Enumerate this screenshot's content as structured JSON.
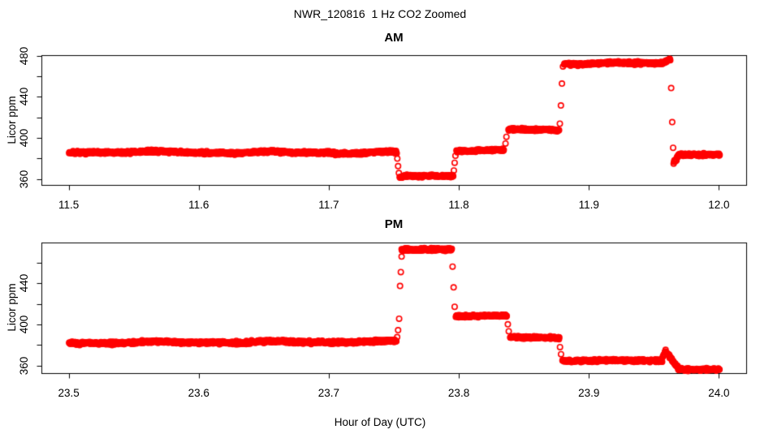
{
  "chart_data": {
    "type": "scatter",
    "title": "NWR_120816  1 Hz CO2 Zoomed",
    "xlabel": "Hour of Day (UTC)",
    "sample_rate_hz": 1,
    "marker": {
      "shape": "open-circle",
      "color": "#ff0000",
      "radius_px": 3.2,
      "stroke_px": 1.6
    },
    "axis_color": "#000000",
    "panels": [
      {
        "title": "AM",
        "ylabel": "Licor ppm",
        "xlim": [
          11.479,
          12.021
        ],
        "ylim": [
          354.2,
          480.9
        ],
        "xticks": [
          11.5,
          11.6,
          11.7,
          11.8,
          11.9,
          12.0
        ],
        "yticks": [
          360,
          400,
          440,
          480
        ],
        "yticks_minor": [
          380,
          420,
          460
        ],
        "segments": [
          {
            "t0": 11.5003,
            "t1": 11.7522,
            "v0": 386.2,
            "v1": 385.6,
            "noise": 0.85,
            "wiggle": 0.7
          },
          {
            "t0": 11.7545,
            "t1": 11.7582,
            "v0": 361.3,
            "v1": 362.6,
            "noise": 0.7,
            "wiggle": 0
          },
          {
            "t0": 11.7582,
            "t1": 11.7958,
            "v0": 363.0,
            "v1": 363.1,
            "noise": 0.65,
            "wiggle": 0.3
          },
          {
            "t0": 11.7982,
            "t1": 11.8346,
            "v0": 387.6,
            "v1": 387.9,
            "noise": 0.7,
            "wiggle": 0.3
          },
          {
            "t0": 11.8382,
            "t1": 11.877,
            "v0": 408.2,
            "v1": 407.8,
            "noise": 0.7,
            "wiggle": 0.3
          },
          {
            "t0": 11.881,
            "t1": 11.9565,
            "v0": 472.5,
            "v1": 472.6,
            "noise": 0.8,
            "wiggle": 0.6
          },
          {
            "t0": 11.9565,
            "t1": 11.9625,
            "v0": 473.0,
            "v1": 476.4,
            "noise": 0.6,
            "wiggle": 0
          },
          {
            "t0": 11.9652,
            "t1": 11.9692,
            "v0": 376.0,
            "v1": 382.8,
            "noise": 0.9,
            "wiggle": 0
          },
          {
            "t0": 11.9692,
            "t1": 12.0005,
            "v0": 384.2,
            "v1": 383.6,
            "noise": 0.8,
            "wiggle": 0.3
          }
        ],
        "transitions": [
          [
            11.7527,
            379.8
          ],
          [
            11.7533,
            372.5
          ],
          [
            11.7539,
            365.8
          ],
          [
            11.7962,
            368.2
          ],
          [
            11.7968,
            375.8
          ],
          [
            11.7974,
            382.6
          ],
          [
            11.8359,
            394.5
          ],
          [
            11.8366,
            401.0
          ],
          [
            11.8777,
            413.8
          ],
          [
            11.8785,
            431.5
          ],
          [
            11.8793,
            452.8
          ],
          [
            11.8801,
            469.5
          ],
          [
            11.9633,
            448.5
          ],
          [
            11.9641,
            415.3
          ],
          [
            11.9648,
            390.3
          ]
        ]
      },
      {
        "title": "PM",
        "ylabel": "Licor ppm",
        "xlim": [
          23.479,
          24.021
        ],
        "ylim": [
          352.8,
          480.0
        ],
        "xticks": [
          23.5,
          23.6,
          23.7,
          23.8,
          23.9,
          24.0
        ],
        "yticks": [
          360,
          400,
          440
        ],
        "yticks_minor": [
          380,
          420,
          460
        ],
        "segments": [
          {
            "t0": 23.5003,
            "t1": 23.752,
            "v0": 382.2,
            "v1": 383.4,
            "noise": 0.85,
            "wiggle": 0.6
          },
          {
            "t0": 23.756,
            "t1": 23.7947,
            "v0": 472.7,
            "v1": 473.1,
            "noise": 0.75,
            "wiggle": 0.3
          },
          {
            "t0": 23.7977,
            "t1": 23.837,
            "v0": 408.6,
            "v1": 408.2,
            "noise": 0.7,
            "wiggle": 0.3
          },
          {
            "t0": 23.8395,
            "t1": 23.8772,
            "v0": 387.6,
            "v1": 387.1,
            "noise": 0.7,
            "wiggle": 0.3
          },
          {
            "t0": 23.8797,
            "t1": 23.9565,
            "v0": 365.2,
            "v1": 364.6,
            "noise": 0.75,
            "wiggle": 0.4
          },
          {
            "t0": 23.9568,
            "t1": 23.959,
            "v0": 368.5,
            "v1": 374.8,
            "noise": 0.6,
            "wiggle": 0
          },
          {
            "t0": 23.9593,
            "t1": 23.9688,
            "v0": 373.5,
            "v1": 357.8,
            "noise": 0.8,
            "wiggle": 0
          },
          {
            "t0": 23.9688,
            "t1": 24.0005,
            "v0": 356.8,
            "v1": 356.3,
            "noise": 0.7,
            "wiggle": 0.3
          }
        ],
        "transitions": [
          [
            23.7526,
            387.8
          ],
          [
            23.7533,
            394.5
          ],
          [
            23.7541,
            405.6
          ],
          [
            23.7548,
            437.4
          ],
          [
            23.7554,
            450.9
          ],
          [
            23.756,
            466.0
          ],
          [
            23.7952,
            456.2
          ],
          [
            23.796,
            436.0
          ],
          [
            23.7968,
            417.2
          ],
          [
            23.8377,
            400.2
          ],
          [
            23.8384,
            393.4
          ],
          [
            23.8778,
            378.1
          ],
          [
            23.8786,
            371.2
          ]
        ]
      }
    ]
  }
}
